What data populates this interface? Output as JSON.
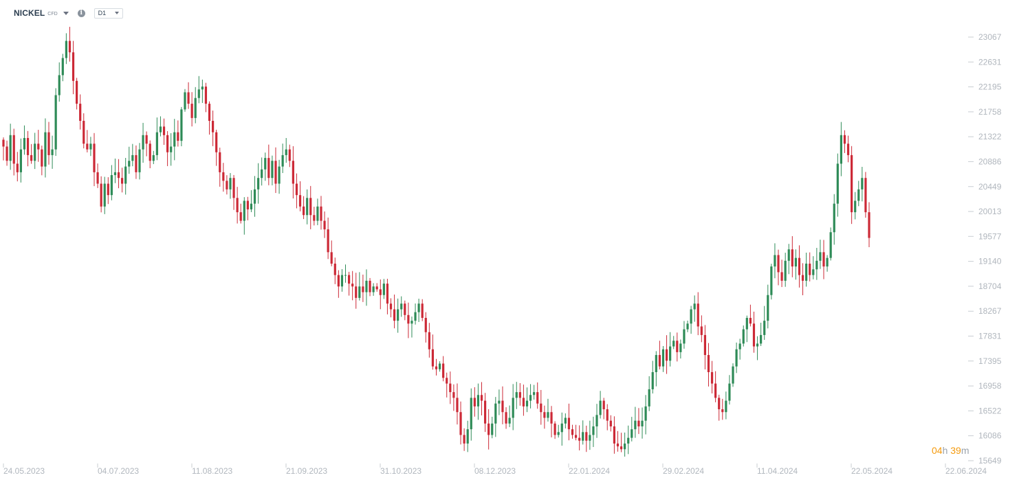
{
  "header": {
    "symbol": "NICKEL",
    "asset_type": "CFD",
    "info_icon": "info-icon",
    "timeframe": "D1"
  },
  "countdown": {
    "hours": "04",
    "hours_unit": "h",
    "minutes": "39",
    "minutes_unit": "m"
  },
  "colors": {
    "up": "#2e8b57",
    "down": "#cc2936",
    "axis_text": "#b0b6bd",
    "tick": "#c8cdd2",
    "countdown": "#f59a0c"
  },
  "chart_data": {
    "type": "candlestick",
    "title": "",
    "xlabel": "",
    "ylabel": "",
    "ylim": [
      15649,
      23067
    ],
    "y_ticks": [
      23067,
      22631,
      22195,
      21758,
      21322,
      20886,
      20449,
      20013,
      19577,
      19140,
      18704,
      18267,
      17831,
      17395,
      16958,
      16522,
      16086,
      15649
    ],
    "x_ticks": [
      "24.05.2023",
      "04.07.2023",
      "11.08.2023",
      "21.09.2023",
      "31.10.2023",
      "08.12.2023",
      "22.01.2024",
      "29.02.2024",
      "11.04.2024",
      "22.05.2024",
      "22.06.2024"
    ],
    "grid": false,
    "legend": "none",
    "close_path": [
      21150,
      20900,
      21350,
      20850,
      20700,
      21100,
      21300,
      21000,
      20900,
      21200,
      21100,
      20800,
      21400,
      21000,
      21100,
      22050,
      22400,
      22700,
      23000,
      22800,
      22300,
      21900,
      21600,
      21200,
      21100,
      21200,
      20700,
      20500,
      20100,
      20500,
      20300,
      20650,
      20700,
      20600,
      20500,
      20800,
      20900,
      21000,
      20700,
      21100,
      21350,
      21200,
      20900,
      21000,
      21400,
      21500,
      21350,
      21050,
      21150,
      21400,
      21250,
      21800,
      22100,
      21900,
      21650,
      22000,
      22150,
      22200,
      21900,
      21600,
      21400,
      21050,
      20700,
      20550,
      20400,
      20600,
      20250,
      20000,
      19850,
      20200,
      20050,
      20150,
      20400,
      20600,
      20750,
      20950,
      20600,
      20900,
      20500,
      20800,
      21000,
      21100,
      20900,
      20500,
      20300,
      20100,
      19950,
      20250,
      19950,
      19850,
      20100,
      19850,
      19700,
      19300,
      19100,
      18900,
      18700,
      18900,
      18900,
      18750,
      18700,
      18500,
      18700,
      18600,
      18800,
      18600,
      18700,
      18650,
      18550,
      18750,
      18400,
      18300,
      18100,
      18300,
      18400,
      18200,
      18050,
      18100,
      18250,
      18400,
      18150,
      17900,
      17600,
      17300,
      17250,
      17350,
      17100,
      17000,
      16850,
      16750,
      16500,
      16100,
      15950,
      16200,
      16750,
      16600,
      16800,
      16700,
      16300,
      16100,
      16300,
      16650,
      16700,
      16500,
      16300,
      16400,
      16750,
      16850,
      16750,
      16600,
      16700,
      16800,
      16850,
      16650,
      16500,
      16400,
      16500,
      16300,
      16100,
      16150,
      16300,
      16400,
      16200,
      16100,
      16050,
      16000,
      16150,
      16000,
      16100,
      16250,
      16450,
      16700,
      16550,
      16350,
      16250,
      15950,
      15900,
      15850,
      15950,
      16050,
      16200,
      16350,
      16250,
      16350,
      16600,
      16900,
      17200,
      17500,
      17300,
      17600,
      17400,
      17650,
      17750,
      17550,
      17700,
      17950,
      18050,
      18300,
      18400,
      18000,
      17850,
      17500,
      17200,
      17000,
      16750,
      16550,
      16500,
      16700,
      17000,
      17300,
      17600,
      17700,
      17950,
      18150,
      18050,
      17650,
      17700,
      17850,
      18100,
      18550,
      19050,
      19250,
      18950,
      18800,
      19150,
      19350,
      19050,
      19200,
      18900,
      18800,
      19100,
      18900,
      19000,
      19150,
      19300,
      19050,
      19200,
      19650,
      20150,
      20850,
      21350,
      21200,
      21000,
      20000,
      20200,
      20400,
      20600,
      20000,
      19550
    ]
  }
}
